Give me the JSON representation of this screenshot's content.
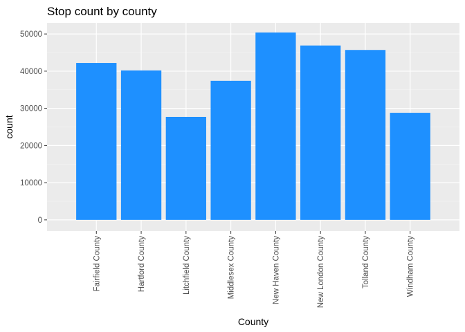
{
  "chart_data": {
    "type": "bar",
    "title": "Stop count by county",
    "xlabel": "County",
    "ylabel": "count",
    "categories": [
      "Fairfield County",
      "Hartford County",
      "Litchfield County",
      "Middlesex County",
      "New Haven County",
      "New London County",
      "Tolland County",
      "Windham County"
    ],
    "values": [
      42200,
      40200,
      27700,
      37400,
      50400,
      46900,
      45700,
      28800
    ],
    "ylim": [
      -3000,
      53000
    ],
    "yticks": [
      0,
      10000,
      20000,
      30000,
      40000,
      50000
    ],
    "ytick_labels": [
      "0",
      "10000",
      "20000",
      "30000",
      "40000",
      "50000"
    ],
    "grid": true,
    "legend": "none",
    "colors": {
      "bar": "#1E90FF",
      "panel": "#EBEBEB",
      "grid_major": "#FFFFFF",
      "grid_minor": "#F5F5F5",
      "tick": "#333333"
    }
  }
}
